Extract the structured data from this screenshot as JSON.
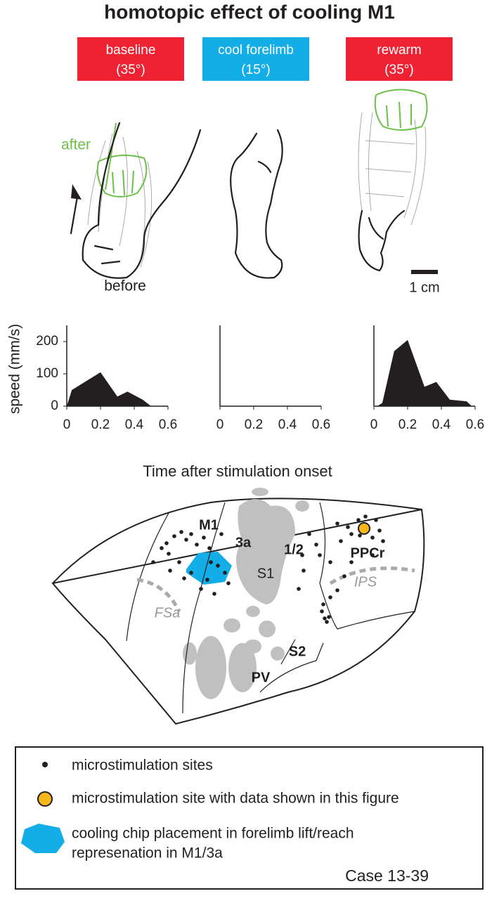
{
  "title": "homotopic effect of cooling M1",
  "conditions": [
    {
      "label": "baseline",
      "temp": "(35°)",
      "color": "#ee2232"
    },
    {
      "label": "cool forelimb",
      "temp": "(15°)",
      "color": "#13aee8"
    },
    {
      "label": "rewarm",
      "temp": "(35°)",
      "color": "#ee2232"
    }
  ],
  "hand_labels": {
    "after": "after",
    "before": "before",
    "scale": "1 cm"
  },
  "chart_data": [
    {
      "type": "area",
      "ylabel": "speed (mm/s)",
      "color": "#231f20",
      "x": [
        0,
        0.03,
        0.2,
        0.3,
        0.36,
        0.45,
        0.5
      ],
      "values": [
        0,
        50,
        105,
        30,
        45,
        20,
        0
      ],
      "xlim": [
        0,
        0.6
      ],
      "xticks": [
        0,
        0.2,
        0.4,
        0.6
      ],
      "ylim": [
        0,
        250
      ],
      "yticks": [
        0,
        100,
        200
      ]
    },
    {
      "type": "area",
      "color": "#231f20",
      "xlim": [
        0,
        0.6
      ],
      "xticks": [
        0,
        0.2,
        0.4,
        0.6
      ],
      "ylim": [
        0,
        250
      ]
    },
    {
      "type": "area",
      "color": "#231f20",
      "x": [
        0.02,
        0.05,
        0.12,
        0.2,
        0.3,
        0.37,
        0.45,
        0.55,
        0.58
      ],
      "values": [
        0,
        10,
        170,
        205,
        60,
        75,
        20,
        15,
        0
      ],
      "xlim": [
        0,
        0.6
      ],
      "xticks": [
        0,
        0.2,
        0.4,
        0.6
      ],
      "ylim": [
        0,
        250
      ]
    }
  ],
  "xlabel": "Time after stimulation onset",
  "map_labels": {
    "m1": "M1",
    "a3": "3a",
    "a12": "1/2",
    "ppcr": "PPCr",
    "s1": "S1",
    "ips": "IPS",
    "fsa": "FSa",
    "s2": "S2",
    "pv": "PV"
  },
  "legend": {
    "sites": "microstimulation sites",
    "site_data": "microstimulation site with data shown in this figure",
    "chip_line1": "cooling chip placement in forelimb lift/reach",
    "chip_line2": "represenation in M1/3a"
  },
  "case": "Case 13-39"
}
